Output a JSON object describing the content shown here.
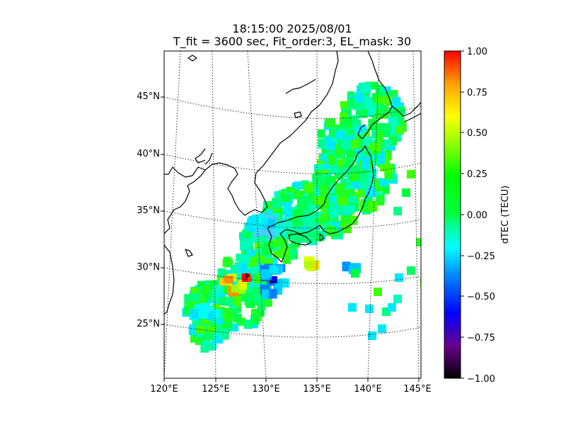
{
  "title": {
    "line1": "18:15:00 2025/08/01",
    "line2": "T_fit = 3600 sec, Fit_order:3, EL_mask: 30"
  },
  "map": {
    "lat_labels": [
      "45°N",
      "40°N",
      "35°N",
      "30°N",
      "25°N"
    ],
    "lon_labels": [
      "120°E",
      "125°E",
      "130°E",
      "135°E",
      "140°E",
      "145°E"
    ],
    "lat_range": [
      20,
      49
    ],
    "lon_range": [
      120,
      145
    ],
    "coastline_color": "#000000",
    "grid_style": "dotted"
  },
  "colorbar": {
    "label": "dTEC (TECU)",
    "ticks": [
      "1.00",
      "0.75",
      "0.50",
      "0.25",
      "0.00",
      "−0.25",
      "−0.50",
      "−0.75",
      "−1.00"
    ],
    "range": [
      -1.0,
      1.0
    ],
    "colormap": [
      "#000000",
      "#6a0090",
      "#0000ff",
      "#00a0ff",
      "#00ffff",
      "#00ff7f",
      "#00ff00",
      "#a0ff00",
      "#ffff00",
      "#ffa000",
      "#ff0000"
    ]
  }
}
